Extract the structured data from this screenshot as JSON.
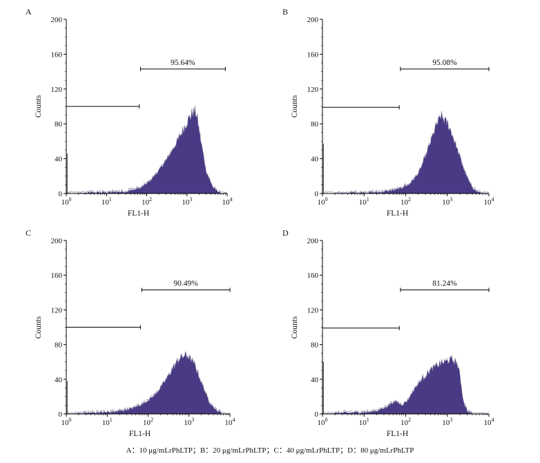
{
  "fill_color": "#4a3a86",
  "caption": "A：10 μg/mLrPhLTP；B：20 μg/mLrPhLTP；C：40 μg/mLrPhLTP；D：80 μg/mLrPhLTP",
  "chart_data": [
    {
      "type": "histogram",
      "panel": "A",
      "xlabel": "FL1-H",
      "ylabel": "Counts",
      "xscale": "log",
      "xlim": [
        1,
        10000
      ],
      "ylim": [
        0,
        200
      ],
      "yticks": [
        "0",
        "40",
        "80",
        "120",
        "160",
        "200"
      ],
      "xticks": [
        {
          "base": "10",
          "exp": "0"
        },
        {
          "base": "10",
          "exp": "1"
        },
        {
          "base": "10",
          "exp": "2"
        },
        {
          "base": "10",
          "exp": "3"
        },
        {
          "base": "10",
          "exp": "4"
        }
      ],
      "gate_left": {
        "from": 1,
        "to": 65,
        "y": 100
      },
      "gate_right": {
        "from": 70,
        "to": 9000,
        "y": 143,
        "label": "95.64%"
      },
      "spike": {
        "x": 1.05,
        "y": 46
      },
      "curve": [
        [
          1,
          0
        ],
        [
          10,
          1
        ],
        [
          30,
          2
        ],
        [
          70,
          6
        ],
        [
          120,
          14
        ],
        [
          200,
          26
        ],
        [
          350,
          42
        ],
        [
          550,
          58
        ],
        [
          800,
          72
        ],
        [
          1100,
          85
        ],
        [
          1400,
          92
        ],
        [
          1600,
          94
        ],
        [
          1800,
          86
        ],
        [
          2200,
          60
        ],
        [
          3000,
          25
        ],
        [
          4500,
          6
        ],
        [
          7000,
          0
        ]
      ]
    },
    {
      "type": "histogram",
      "panel": "B",
      "xlabel": "FL1-H",
      "ylabel": "Counts",
      "xscale": "log",
      "xlim": [
        1,
        10000
      ],
      "ylim": [
        0,
        200
      ],
      "yticks": [
        "0",
        "40",
        "80",
        "120",
        "160",
        "200"
      ],
      "xticks": [
        {
          "base": "10",
          "exp": "0"
        },
        {
          "base": "10",
          "exp": "1"
        },
        {
          "base": "10",
          "exp": "2"
        },
        {
          "base": "10",
          "exp": "3"
        },
        {
          "base": "10",
          "exp": "4"
        }
      ],
      "gate_left": {
        "from": 1,
        "to": 70,
        "y": 99
      },
      "gate_right": {
        "from": 75,
        "to": 10000,
        "y": 143,
        "label": "95.08%"
      },
      "spike": {
        "x": 1.05,
        "y": 57
      },
      "curve": [
        [
          1,
          0
        ],
        [
          20,
          1
        ],
        [
          60,
          4
        ],
        [
          120,
          10
        ],
        [
          200,
          22
        ],
        [
          300,
          42
        ],
        [
          420,
          62
        ],
        [
          550,
          78
        ],
        [
          700,
          88
        ],
        [
          850,
          84
        ],
        [
          1000,
          80
        ],
        [
          1300,
          68
        ],
        [
          1800,
          48
        ],
        [
          2600,
          25
        ],
        [
          3600,
          10
        ],
        [
          5000,
          2
        ],
        [
          7000,
          0
        ]
      ]
    },
    {
      "type": "histogram",
      "panel": "C",
      "xlabel": "FL1-H",
      "ylabel": "Counts",
      "xscale": "log",
      "xlim": [
        1,
        10000
      ],
      "ylim": [
        0,
        200
      ],
      "yticks": [
        "0",
        "40",
        "80",
        "120",
        "160",
        "200"
      ],
      "xticks": [
        {
          "base": "10",
          "exp": "0"
        },
        {
          "base": "10",
          "exp": "1"
        },
        {
          "base": "10",
          "exp": "2"
        },
        {
          "base": "10",
          "exp": "3"
        },
        {
          "base": "10",
          "exp": "4"
        }
      ],
      "gate_left": {
        "from": 1,
        "to": 65,
        "y": 100
      },
      "gate_right": {
        "from": 70,
        "to": 10000,
        "y": 143,
        "label": "90.49%"
      },
      "spike": {
        "x": 1.05,
        "y": 38
      },
      "curve": [
        [
          1,
          0
        ],
        [
          15,
          2
        ],
        [
          40,
          6
        ],
        [
          80,
          12
        ],
        [
          150,
          22
        ],
        [
          250,
          36
        ],
        [
          400,
          52
        ],
        [
          600,
          64
        ],
        [
          800,
          67
        ],
        [
          1000,
          65
        ],
        [
          1400,
          55
        ],
        [
          2000,
          36
        ],
        [
          3000,
          15
        ],
        [
          4500,
          4
        ],
        [
          7000,
          0
        ]
      ]
    },
    {
      "type": "histogram",
      "panel": "D",
      "xlabel": "FL1-H",
      "ylabel": "Counts",
      "xscale": "log",
      "xlim": [
        1,
        10000
      ],
      "ylim": [
        0,
        200
      ],
      "yticks": [
        "0",
        "40",
        "80",
        "120",
        "160",
        "200"
      ],
      "xticks": [
        {
          "base": "10",
          "exp": "0"
        },
        {
          "base": "10",
          "exp": "1"
        },
        {
          "base": "10",
          "exp": "2"
        },
        {
          "base": "10",
          "exp": "3"
        },
        {
          "base": "10",
          "exp": "4"
        }
      ],
      "gate_left": {
        "from": 1,
        "to": 70,
        "y": 99
      },
      "gate_right": {
        "from": 75,
        "to": 10000,
        "y": 143,
        "label": "81.24%"
      },
      "spike": {
        "x": 1.05,
        "y": 60
      },
      "curve": [
        [
          1,
          0
        ],
        [
          15,
          2
        ],
        [
          30,
          6
        ],
        [
          45,
          12
        ],
        [
          60,
          14
        ],
        [
          80,
          10
        ],
        [
          110,
          15
        ],
        [
          160,
          28
        ],
        [
          250,
          40
        ],
        [
          400,
          50
        ],
        [
          600,
          56
        ],
        [
          900,
          60
        ],
        [
          1300,
          62
        ],
        [
          1700,
          58
        ],
        [
          2000,
          45
        ],
        [
          2400,
          15
        ],
        [
          3000,
          3
        ],
        [
          4000,
          0
        ]
      ]
    }
  ]
}
